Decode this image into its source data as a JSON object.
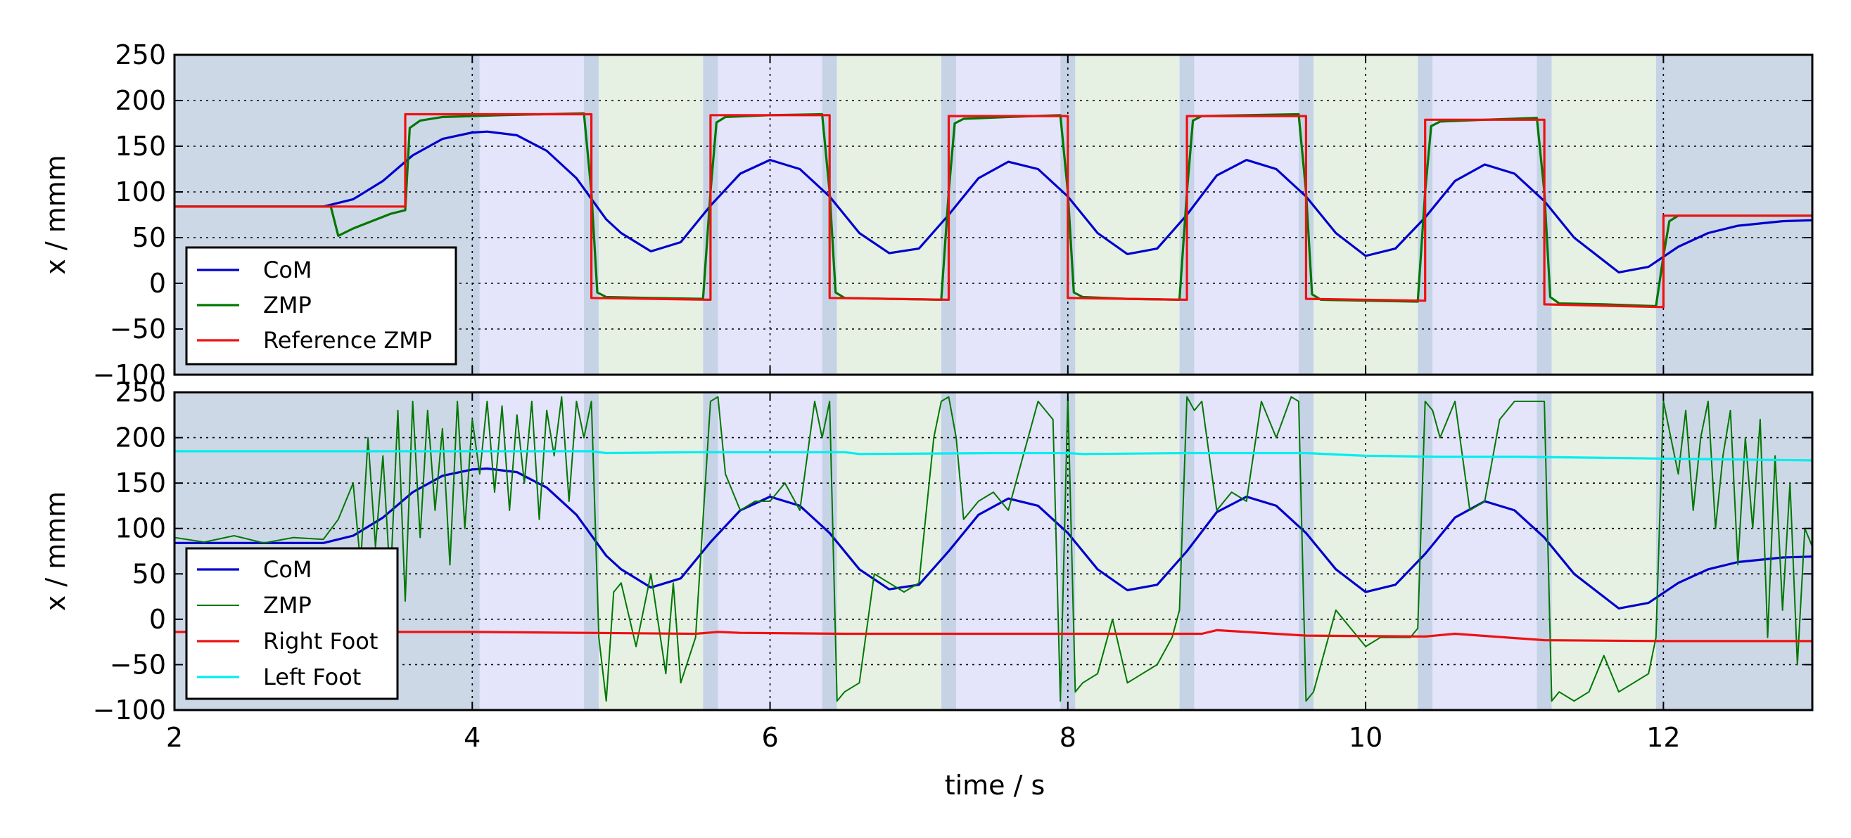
{
  "chart_data": [
    {
      "type": "line",
      "ylabel": "x / mmm",
      "xlim": [
        2,
        13
      ],
      "ylim": [
        -100,
        250
      ],
      "xticks": [
        2,
        4,
        6,
        8,
        10,
        12
      ],
      "yticks": [
        250,
        200,
        150,
        100,
        50,
        0,
        -50,
        -100
      ],
      "ytick_labels": [
        "250",
        "200",
        "150",
        "100",
        "50",
        "0",
        "−50",
        "−100"
      ],
      "grid": true,
      "legend_position": "lower-left",
      "phases": [
        {
          "start": 2.0,
          "end": 4.0,
          "kind": "double"
        },
        {
          "start": 4.0,
          "end": 4.05,
          "kind": "transition"
        },
        {
          "start": 4.05,
          "end": 4.75,
          "kind": "left"
        },
        {
          "start": 4.75,
          "end": 4.85,
          "kind": "transition"
        },
        {
          "start": 4.85,
          "end": 5.55,
          "kind": "right"
        },
        {
          "start": 5.55,
          "end": 5.65,
          "kind": "transition"
        },
        {
          "start": 5.65,
          "end": 6.35,
          "kind": "left"
        },
        {
          "start": 6.35,
          "end": 6.45,
          "kind": "transition"
        },
        {
          "start": 6.45,
          "end": 7.15,
          "kind": "right"
        },
        {
          "start": 7.15,
          "end": 7.25,
          "kind": "transition"
        },
        {
          "start": 7.25,
          "end": 7.95,
          "kind": "left"
        },
        {
          "start": 7.95,
          "end": 8.05,
          "kind": "transition"
        },
        {
          "start": 8.05,
          "end": 8.75,
          "kind": "right"
        },
        {
          "start": 8.75,
          "end": 8.85,
          "kind": "transition"
        },
        {
          "start": 8.85,
          "end": 9.55,
          "kind": "left"
        },
        {
          "start": 9.55,
          "end": 9.65,
          "kind": "transition"
        },
        {
          "start": 9.65,
          "end": 10.35,
          "kind": "right"
        },
        {
          "start": 10.35,
          "end": 10.45,
          "kind": "transition"
        },
        {
          "start": 10.45,
          "end": 11.15,
          "kind": "left"
        },
        {
          "start": 11.15,
          "end": 11.25,
          "kind": "transition"
        },
        {
          "start": 11.25,
          "end": 11.95,
          "kind": "right"
        },
        {
          "start": 11.95,
          "end": 12.0,
          "kind": "transition"
        },
        {
          "start": 12.0,
          "end": 13.0,
          "kind": "double"
        }
      ],
      "series": [
        {
          "name": "CoM",
          "color": "#0000cc",
          "x": [
            2.0,
            3.0,
            3.2,
            3.4,
            3.6,
            3.8,
            4.0,
            4.1,
            4.3,
            4.5,
            4.7,
            4.9,
            5.0,
            5.2,
            5.4,
            5.6,
            5.8,
            6.0,
            6.2,
            6.4,
            6.6,
            6.8,
            7.0,
            7.2,
            7.4,
            7.6,
            7.8,
            8.0,
            8.2,
            8.4,
            8.6,
            8.8,
            9.0,
            9.2,
            9.4,
            9.6,
            9.8,
            10.0,
            10.2,
            10.4,
            10.6,
            10.8,
            11.0,
            11.2,
            11.4,
            11.7,
            11.9,
            12.1,
            12.3,
            12.5,
            12.8,
            13.0
          ],
          "y": [
            84,
            84,
            92,
            112,
            140,
            158,
            165,
            166,
            162,
            145,
            115,
            70,
            55,
            35,
            45,
            85,
            120,
            135,
            125,
            95,
            55,
            33,
            38,
            75,
            115,
            133,
            125,
            95,
            55,
            32,
            38,
            75,
            118,
            135,
            125,
            95,
            55,
            30,
            38,
            72,
            112,
            130,
            120,
            90,
            50,
            12,
            18,
            40,
            55,
            63,
            68,
            69
          ]
        },
        {
          "name": "ZMP",
          "color": "#007700",
          "x": [
            2.0,
            3.05,
            3.1,
            3.2,
            3.45,
            3.55,
            3.58,
            3.65,
            3.8,
            4.2,
            4.75,
            4.8,
            4.84,
            4.9,
            5.2,
            5.55,
            5.6,
            5.64,
            5.7,
            6.0,
            6.35,
            6.4,
            6.44,
            6.5,
            6.8,
            7.15,
            7.2,
            7.24,
            7.3,
            7.6,
            7.95,
            8.0,
            8.04,
            8.1,
            8.4,
            8.75,
            8.8,
            8.84,
            8.9,
            9.2,
            9.55,
            9.6,
            9.64,
            9.7,
            10.0,
            10.35,
            10.4,
            10.44,
            10.5,
            10.8,
            11.15,
            11.2,
            11.24,
            11.3,
            11.6,
            11.95,
            12.0,
            12.04,
            12.1,
            13.0
          ],
          "y": [
            84,
            84,
            52,
            60,
            76,
            80,
            170,
            178,
            182,
            184,
            186,
            100,
            -10,
            -15,
            -16,
            -17,
            100,
            176,
            182,
            184,
            185,
            100,
            -10,
            -16,
            -17,
            -18,
            100,
            175,
            180,
            182,
            184,
            100,
            -10,
            -15,
            -17,
            -18,
            100,
            178,
            183,
            184,
            185,
            100,
            -12,
            -18,
            -19,
            -20,
            100,
            172,
            177,
            179,
            181,
            100,
            -15,
            -22,
            -23,
            -25,
            30,
            68,
            74,
            74
          ]
        },
        {
          "name": "Reference ZMP",
          "color": "#ee1111",
          "x": [
            2.0,
            3.55,
            3.55,
            4.8,
            4.8,
            5.6,
            5.6,
            6.4,
            6.4,
            7.2,
            7.2,
            8.0,
            8.0,
            8.8,
            8.8,
            9.6,
            9.6,
            10.4,
            10.4,
            11.2,
            11.2,
            12.0,
            12.0,
            13.0
          ],
          "y": [
            84,
            84,
            185,
            185,
            -16,
            -18,
            184,
            184,
            -16,
            -18,
            183,
            183,
            -16,
            -18,
            183,
            183,
            -17,
            -19,
            179,
            179,
            -23,
            -26,
            74,
            74
          ]
        }
      ]
    },
    {
      "type": "line",
      "xlabel": "time / s",
      "ylabel": "x / mmm",
      "xlim": [
        2,
        13
      ],
      "ylim": [
        -100,
        250
      ],
      "xticks": [
        2,
        4,
        6,
        8,
        10,
        12
      ],
      "yticks": [
        250,
        200,
        150,
        100,
        50,
        0,
        -50,
        -100
      ],
      "ytick_labels": [
        "250",
        "200",
        "150",
        "100",
        "50",
        "0",
        "−50",
        "−100"
      ],
      "grid": true,
      "legend_position": "lower-left",
      "series": [
        {
          "name": "CoM",
          "color": "#0000cc",
          "x": [
            2.0,
            3.0,
            3.2,
            3.4,
            3.6,
            3.8,
            4.0,
            4.1,
            4.3,
            4.5,
            4.7,
            4.9,
            5.0,
            5.2,
            5.4,
            5.6,
            5.8,
            6.0,
            6.2,
            6.4,
            6.6,
            6.8,
            7.0,
            7.2,
            7.4,
            7.6,
            7.8,
            8.0,
            8.2,
            8.4,
            8.6,
            8.8,
            9.0,
            9.2,
            9.4,
            9.6,
            9.8,
            10.0,
            10.2,
            10.4,
            10.6,
            10.8,
            11.0,
            11.2,
            11.4,
            11.7,
            11.9,
            12.1,
            12.3,
            12.5,
            12.8,
            13.0
          ],
          "y": [
            84,
            84,
            92,
            112,
            140,
            158,
            165,
            166,
            162,
            145,
            115,
            70,
            55,
            35,
            45,
            85,
            120,
            135,
            125,
            95,
            55,
            33,
            38,
            75,
            115,
            133,
            125,
            95,
            55,
            32,
            38,
            75,
            118,
            135,
            125,
            95,
            55,
            30,
            38,
            72,
            112,
            130,
            120,
            90,
            50,
            12,
            18,
            40,
            55,
            63,
            68,
            69
          ]
        },
        {
          "name": "ZMP",
          "color": "#007700",
          "x": [
            2.0,
            2.2,
            2.4,
            2.6,
            2.8,
            3.0,
            3.1,
            3.2,
            3.25,
            3.3,
            3.35,
            3.4,
            3.45,
            3.5,
            3.55,
            3.6,
            3.65,
            3.7,
            3.75,
            3.8,
            3.85,
            3.9,
            3.95,
            4.0,
            4.05,
            4.1,
            4.15,
            4.2,
            4.25,
            4.3,
            4.35,
            4.4,
            4.45,
            4.5,
            4.55,
            4.6,
            4.65,
            4.7,
            4.75,
            4.8,
            4.85,
            4.9,
            4.95,
            5.0,
            5.1,
            5.2,
            5.3,
            5.35,
            5.4,
            5.5,
            5.6,
            5.65,
            5.7,
            5.8,
            5.9,
            6.0,
            6.1,
            6.2,
            6.3,
            6.35,
            6.4,
            6.45,
            6.5,
            6.6,
            6.7,
            6.8,
            6.9,
            7.0,
            7.1,
            7.15,
            7.2,
            7.25,
            7.3,
            7.4,
            7.5,
            7.6,
            7.7,
            7.8,
            7.9,
            7.95,
            8.0,
            8.05,
            8.1,
            8.2,
            8.3,
            8.4,
            8.5,
            8.6,
            8.7,
            8.75,
            8.8,
            8.85,
            8.9,
            9.0,
            9.1,
            9.2,
            9.3,
            9.4,
            9.5,
            9.55,
            9.6,
            9.65,
            9.7,
            9.8,
            9.9,
            10.0,
            10.1,
            10.2,
            10.3,
            10.35,
            10.4,
            10.45,
            10.5,
            10.6,
            10.7,
            10.8,
            10.9,
            11.0,
            11.1,
            11.15,
            11.2,
            11.25,
            11.3,
            11.4,
            11.5,
            11.6,
            11.7,
            11.8,
            11.9,
            11.95,
            12.0,
            12.05,
            12.1,
            12.15,
            12.2,
            12.25,
            12.3,
            12.35,
            12.4,
            12.45,
            12.5,
            12.55,
            12.6,
            12.65,
            12.7,
            12.75,
            12.8,
            12.85,
            12.9,
            12.95,
            13.0
          ],
          "y": [
            90,
            85,
            92,
            84,
            90,
            88,
            110,
            150,
            60,
            200,
            80,
            180,
            40,
            230,
            20,
            240,
            90,
            230,
            120,
            210,
            60,
            240,
            100,
            220,
            160,
            240,
            140,
            235,
            120,
            225,
            150,
            240,
            110,
            230,
            180,
            245,
            130,
            240,
            200,
            240,
            -20,
            -90,
            30,
            40,
            -30,
            50,
            -60,
            40,
            -70,
            -20,
            240,
            245,
            160,
            120,
            130,
            130,
            150,
            120,
            240,
            200,
            240,
            -90,
            -80,
            -70,
            50,
            40,
            30,
            40,
            200,
            240,
            245,
            200,
            110,
            130,
            140,
            120,
            180,
            240,
            220,
            -90,
            245,
            -80,
            -70,
            -60,
            0,
            -70,
            -60,
            -50,
            -20,
            10,
            245,
            230,
            240,
            120,
            140,
            130,
            240,
            200,
            245,
            240,
            -90,
            -80,
            -50,
            10,
            -10,
            -30,
            -20,
            -20,
            -20,
            -10,
            240,
            230,
            200,
            240,
            120,
            130,
            220,
            240,
            240,
            240,
            240,
            -90,
            -80,
            -90,
            -80,
            -40,
            -80,
            -70,
            -60,
            -20,
            240,
            200,
            160,
            230,
            120,
            200,
            240,
            100,
            180,
            230,
            60,
            200,
            100,
            220,
            -20,
            180,
            10,
            150,
            -50,
            100,
            80
          ]
        },
        {
          "name": "Right Foot",
          "color": "#ee1111",
          "x": [
            2.0,
            3.5,
            4.0,
            5.5,
            5.65,
            5.8,
            6.5,
            7.4,
            8.5,
            8.9,
            9.0,
            9.6,
            10.4,
            10.6,
            11.2,
            12.0,
            13.0
          ],
          "y": [
            -14,
            -14,
            -14,
            -16,
            -14,
            -15,
            -16,
            -16,
            -16,
            -16,
            -12,
            -18,
            -19,
            -16,
            -23,
            -24,
            -24
          ]
        },
        {
          "name": "Left Foot",
          "color": "#00eeee",
          "x": [
            2.0,
            4.0,
            4.8,
            4.9,
            5.5,
            6.5,
            6.6,
            7.5,
            8.0,
            8.1,
            8.8,
            9.6,
            10.0,
            10.5,
            11.0,
            11.5,
            12.0,
            12.5,
            13.0
          ],
          "y": [
            185,
            185,
            185,
            183,
            184,
            184,
            182,
            183,
            183,
            182,
            183,
            183,
            180,
            179,
            179,
            178,
            177,
            176,
            175
          ]
        }
      ]
    }
  ]
}
